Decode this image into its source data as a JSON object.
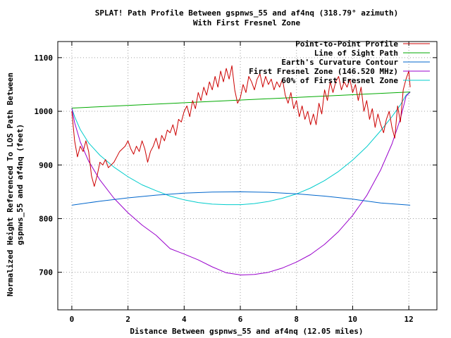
{
  "chart_data": {
    "type": "line",
    "title": "SPLAT! Path Profile Between gspnws_55 and af4nq (318.79° azimuth)",
    "subtitle": "With First Fresnel Zone",
    "xlabel": "Distance Between gspnws_55 and af4nq (12.05 miles)",
    "ylabel": "Normalized Height Referenced To LOS Path Between",
    "ylabel2": "gspnws_55 and af4nq (feet)",
    "xlim": [
      -0.5,
      13
    ],
    "ylim": [
      630,
      1130
    ],
    "xticks": [
      0,
      2,
      4,
      6,
      8,
      10,
      12
    ],
    "yticks": [
      700,
      800,
      900,
      1000,
      1100
    ],
    "grid": true,
    "legend_position": "top-right",
    "series": [
      {
        "name": "Point-to-Point Profile",
        "color": "#cc0000",
        "x": [
          0,
          0.1,
          0.2,
          0.3,
          0.4,
          0.5,
          0.6,
          0.7,
          0.8,
          0.9,
          1.0,
          1.1,
          1.2,
          1.3,
          1.4,
          1.5,
          1.6,
          1.7,
          1.8,
          1.9,
          2.0,
          2.1,
          2.2,
          2.3,
          2.4,
          2.5,
          2.6,
          2.7,
          2.8,
          2.9,
          3.0,
          3.1,
          3.2,
          3.3,
          3.4,
          3.5,
          3.6,
          3.7,
          3.8,
          3.9,
          4.0,
          4.1,
          4.2,
          4.3,
          4.4,
          4.5,
          4.6,
          4.7,
          4.8,
          4.9,
          5.0,
          5.1,
          5.2,
          5.3,
          5.4,
          5.5,
          5.6,
          5.7,
          5.8,
          5.9,
          6.0,
          6.1,
          6.2,
          6.3,
          6.4,
          6.5,
          6.6,
          6.7,
          6.8,
          6.9,
          7.0,
          7.1,
          7.2,
          7.3,
          7.4,
          7.5,
          7.6,
          7.7,
          7.8,
          7.9,
          8.0,
          8.1,
          8.2,
          8.3,
          8.4,
          8.5,
          8.6,
          8.7,
          8.8,
          8.9,
          9.0,
          9.1,
          9.2,
          9.3,
          9.4,
          9.5,
          9.6,
          9.7,
          9.8,
          9.9,
          10.0,
          10.1,
          10.2,
          10.3,
          10.4,
          10.5,
          10.6,
          10.7,
          10.8,
          10.9,
          11.0,
          11.1,
          11.2,
          11.3,
          11.4,
          11.5,
          11.6,
          11.7,
          11.8,
          11.9,
          12.0,
          12.05
        ],
        "values": [
          1000,
          945,
          915,
          935,
          925,
          945,
          925,
          880,
          860,
          880,
          905,
          900,
          910,
          895,
          900,
          905,
          915,
          925,
          930,
          935,
          945,
          930,
          920,
          935,
          925,
          945,
          930,
          905,
          925,
          935,
          950,
          930,
          955,
          945,
          965,
          960,
          975,
          955,
          985,
          980,
          1000,
          1010,
          990,
          1020,
          1005,
          1035,
          1020,
          1045,
          1030,
          1055,
          1040,
          1065,
          1045,
          1075,
          1055,
          1080,
          1060,
          1085,
          1040,
          1015,
          1025,
          1050,
          1035,
          1065,
          1055,
          1040,
          1060,
          1070,
          1045,
          1065,
          1050,
          1060,
          1040,
          1055,
          1045,
          1060,
          1030,
          1015,
          1035,
          1005,
          1020,
          990,
          1010,
          985,
          1000,
          975,
          995,
          975,
          1015,
          995,
          1040,
          1020,
          1055,
          1035,
          1055,
          1065,
          1040,
          1055,
          1045,
          1060,
          1035,
          1050,
          1020,
          1045,
          1000,
          1020,
          985,
          1005,
          970,
          995,
          975,
          960,
          985,
          1000,
          970,
          950,
          1010,
          980,
          1040,
          1060,
          1075,
          1045
        ]
      },
      {
        "name": "Line of Sight Path",
        "color": "#00aa00",
        "x": [
          0,
          12.05
        ],
        "values": [
          1006,
          1036
        ]
      },
      {
        "name": "Earth's Curvature Contour",
        "color": "#0066cc",
        "x": [
          0,
          1,
          2,
          3,
          4,
          5,
          6,
          7,
          8,
          9,
          10,
          11,
          12.05
        ],
        "values": [
          825,
          832.5,
          838.7,
          843.8,
          847.4,
          849.5,
          850.0,
          849.0,
          846.3,
          842.0,
          836.3,
          829.1,
          825
        ]
      },
      {
        "name": "First Fresnel Zone (146.520 MHz)",
        "color": "#9900cc",
        "x": [
          0,
          0.1,
          0.3,
          0.6,
          1,
          1.5,
          2,
          2.5,
          3,
          3.5,
          4,
          4.5,
          5,
          5.5,
          6.025,
          6.5,
          7,
          7.5,
          8,
          8.5,
          9,
          9.5,
          10,
          10.5,
          11,
          11.4,
          11.7,
          11.9,
          12.05
        ],
        "values": [
          1006,
          979,
          943,
          907,
          872,
          838,
          811,
          788,
          769,
          744,
          734,
          723,
          710,
          699,
          695,
          696,
          700,
          708,
          719,
          733,
          752,
          776,
          806,
          843,
          891,
          939,
          986,
          1028,
          1036
        ]
      },
      {
        "name": "60% of First Fresnel Zone",
        "color": "#00cccc",
        "x": [
          0,
          0.1,
          0.3,
          0.6,
          1,
          1.5,
          2,
          2.5,
          3,
          3.5,
          4,
          4.5,
          5,
          5.5,
          6.025,
          6.5,
          7,
          7.5,
          8,
          8.5,
          9,
          9.5,
          10,
          10.5,
          11,
          11.4,
          11.7,
          11.9,
          12.05
        ],
        "values": [
          1006,
          990,
          966,
          941,
          918,
          896,
          878,
          863,
          852,
          842,
          835,
          830,
          827,
          826,
          826,
          828,
          832,
          838,
          846,
          857,
          871,
          888,
          909,
          934,
          964,
          990,
          1012,
          1030,
          1036
        ]
      }
    ]
  }
}
